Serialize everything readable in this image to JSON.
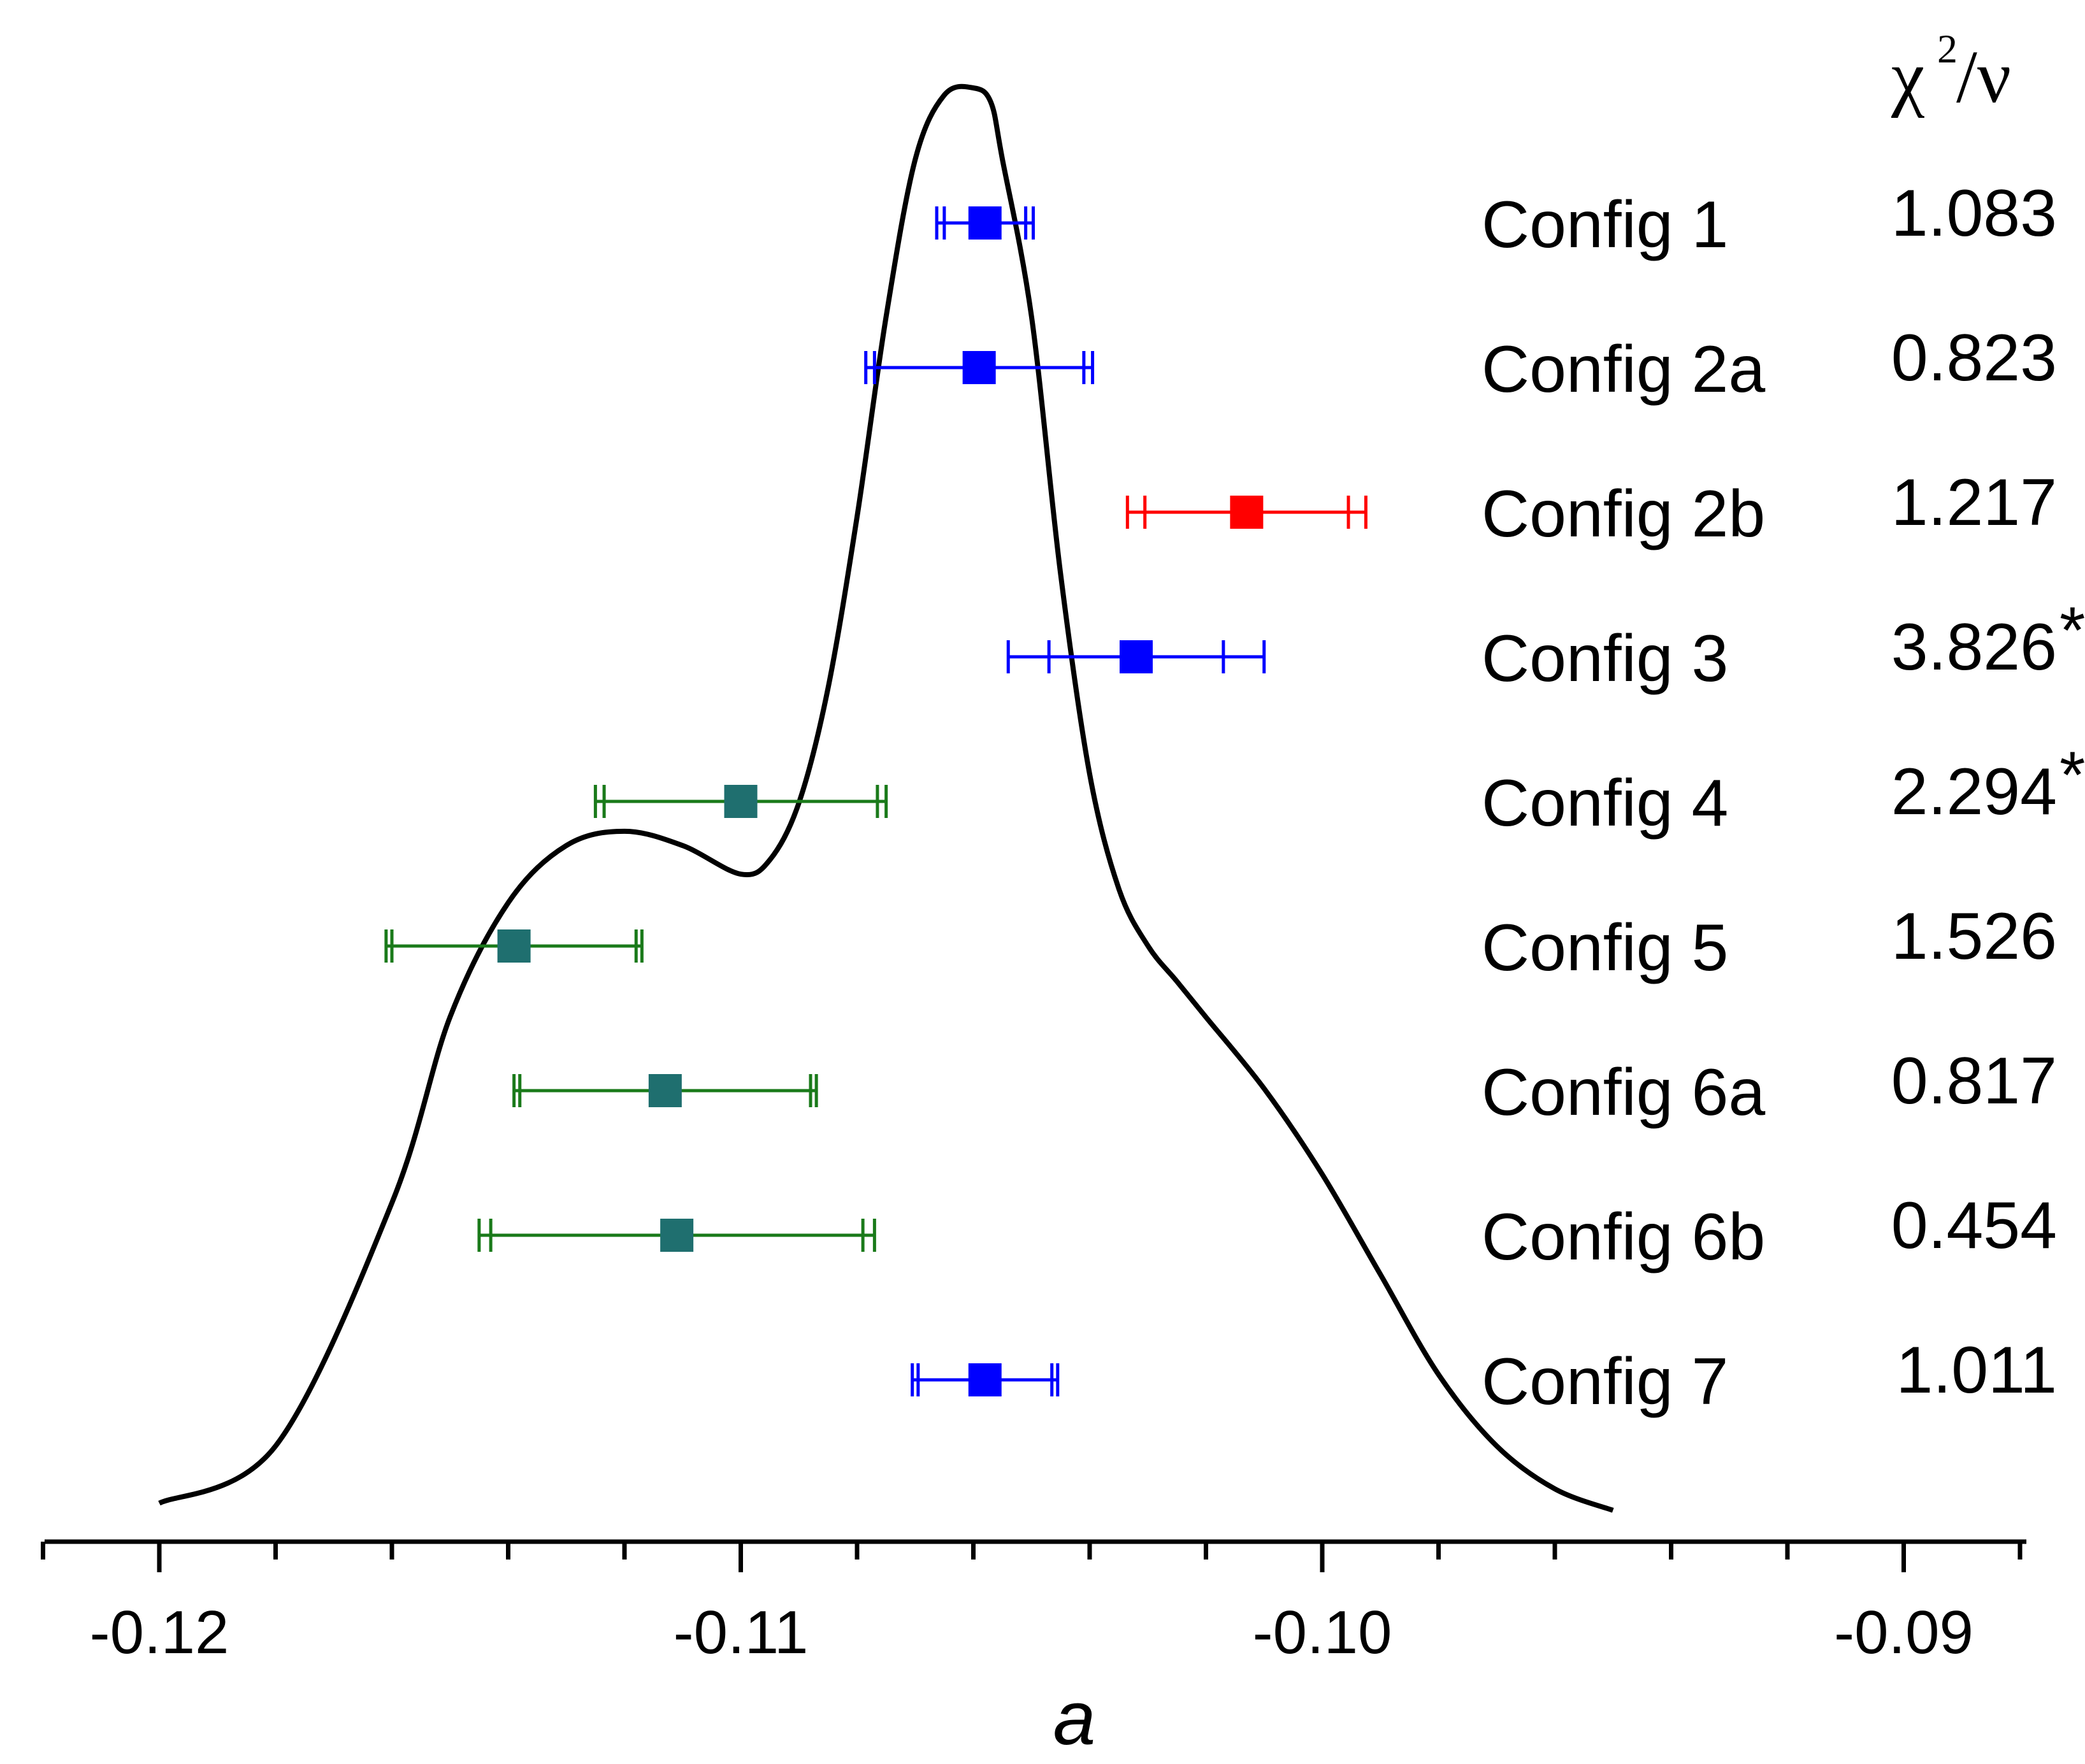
{
  "chart_data": {
    "type": "scatter",
    "title": "",
    "xlabel": "a",
    "ylabel": "",
    "xlim": [
      -0.122,
      -0.0875
    ],
    "xticks": [
      -0.12,
      -0.11,
      -0.1,
      -0.09
    ],
    "xtick_labels": [
      "-0.12",
      "-0.11",
      "-0.10",
      "-0.09"
    ],
    "minor_tick_step": 0.002,
    "grid": false,
    "chi_header": {
      "symbol": "χ",
      "sup": "2",
      "suffix": "/ν"
    },
    "series": [
      {
        "name": "Config 1",
        "value": -0.1058,
        "err_inner": 0.0007,
        "err_outer": 0.00083,
        "chi2_nu": "1.083",
        "flag": "",
        "color": "#0000ff"
      },
      {
        "name": "Config 2a",
        "value": -0.1059,
        "err_inner": 0.0018,
        "err_outer": 0.00195,
        "chi2_nu": "0.823",
        "flag": "",
        "color": "#0000ff"
      },
      {
        "name": "Config 2b",
        "value": -0.1013,
        "err_inner": 0.00175,
        "err_outer": 0.00205,
        "chi2_nu": "1.217",
        "flag": "",
        "color": "#ff0000"
      },
      {
        "name": "Config 3",
        "value": -0.1032,
        "err_inner": 0.0015,
        "err_outer": 0.0022,
        "chi2_nu": "3.826",
        "flag": "*",
        "color": "#0000ff"
      },
      {
        "name": "Config 4",
        "value": -0.11,
        "err_inner": 0.00235,
        "err_outer": 0.0025,
        "chi2_nu": "2.294",
        "flag": "*",
        "color": "#1f6f6f"
      },
      {
        "name": "Config 5",
        "value": -0.1139,
        "err_inner": 0.0021,
        "err_outer": 0.0022,
        "chi2_nu": "1.526",
        "flag": "",
        "color": "#1f6f6f"
      },
      {
        "name": "Config 6a",
        "value": -0.1113,
        "err_inner": 0.0025,
        "err_outer": 0.0026,
        "chi2_nu": "0.817",
        "flag": "",
        "color": "#1f6f6f"
      },
      {
        "name": "Config 6b",
        "value": -0.1111,
        "err_inner": 0.0032,
        "err_outer": 0.0034,
        "chi2_nu": "0.454",
        "flag": "",
        "color": "#1f6f6f"
      },
      {
        "name": "Config 7",
        "value": -0.1058,
        "err_inner": 0.00115,
        "err_outer": 0.00125,
        "chi2_nu": "1.011",
        "flag": "",
        "color": "#0000ff"
      }
    ],
    "errorbar_color_blue": "#0000ff",
    "errorbar_color_red": "#ff0000",
    "errorbar_color_green": "#1a7a1a",
    "flag_color": "#ff0000",
    "density_curve": {
      "x": [
        -0.12,
        -0.118,
        -0.116,
        -0.115,
        -0.114,
        -0.113,
        -0.112,
        -0.111,
        -0.11,
        -0.1095,
        -0.109,
        -0.1085,
        -0.108,
        -0.1075,
        -0.107,
        -0.1065,
        -0.106,
        -0.1057,
        -0.1055,
        -0.105,
        -0.1045,
        -0.104,
        -0.1035,
        -0.103,
        -0.1025,
        -0.102,
        -0.101,
        -0.1,
        -0.099,
        -0.098,
        -0.097,
        -0.096,
        -0.095
      ],
      "y": [
        0.01,
        0.05,
        0.22,
        0.35,
        0.43,
        0.47,
        0.48,
        0.47,
        0.45,
        0.46,
        0.5,
        0.58,
        0.7,
        0.84,
        0.95,
        0.995,
        1.0,
        0.99,
        0.95,
        0.84,
        0.66,
        0.52,
        0.44,
        0.4,
        0.375,
        0.35,
        0.3,
        0.24,
        0.17,
        0.1,
        0.05,
        0.02,
        0.005
      ]
    }
  }
}
